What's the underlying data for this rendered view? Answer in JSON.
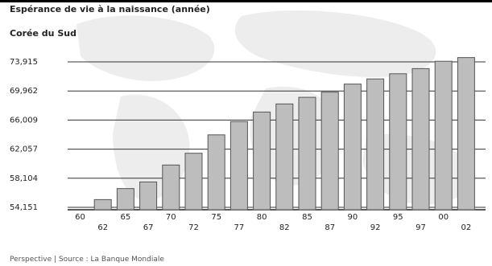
{
  "header": {
    "title": "Espérance de vie à la naissance (année)",
    "country": "Corée du Sud"
  },
  "footer": {
    "source": "Perspective | Source : La Banque Mondiale"
  },
  "colors": {
    "bar_fill": "#bdbdbd",
    "bar_stroke": "#555555",
    "grid": "#333333",
    "map_bg": "#e9e9e9"
  },
  "chart_data": {
    "type": "bar",
    "title": "Espérance de vie à la naissance (année)",
    "subtitle": "Corée du Sud",
    "xlabel": "",
    "ylabel": "",
    "categories": [
      "60",
      "62",
      "65",
      "67",
      "70",
      "72",
      "75",
      "77",
      "80",
      "82",
      "85",
      "87",
      "90",
      "92",
      "95",
      "97",
      "00",
      "02"
    ],
    "y_tick_labels": [
      "54,151",
      "58,104",
      "62,057",
      "66,009",
      "69,962",
      "73,915"
    ],
    "x_tick_labels_row1": [
      "60",
      "65",
      "70",
      "75",
      "80",
      "85",
      "90",
      "95",
      "00"
    ],
    "x_tick_labels_row2": [
      "62",
      "67",
      "72",
      "77",
      "82",
      "87",
      "92",
      "97",
      "02"
    ],
    "ylim": [
      54.151,
      73.915
    ],
    "grid": true,
    "legend": "none",
    "series": [
      {
        "values": [
          null,
          55.2,
          56.7,
          57.6,
          59.9,
          61.5,
          64.0,
          65.8,
          67.1,
          68.2,
          69.1,
          69.8,
          70.9,
          71.6,
          72.3,
          73.0,
          74.0,
          74.5
        ]
      }
    ]
  }
}
